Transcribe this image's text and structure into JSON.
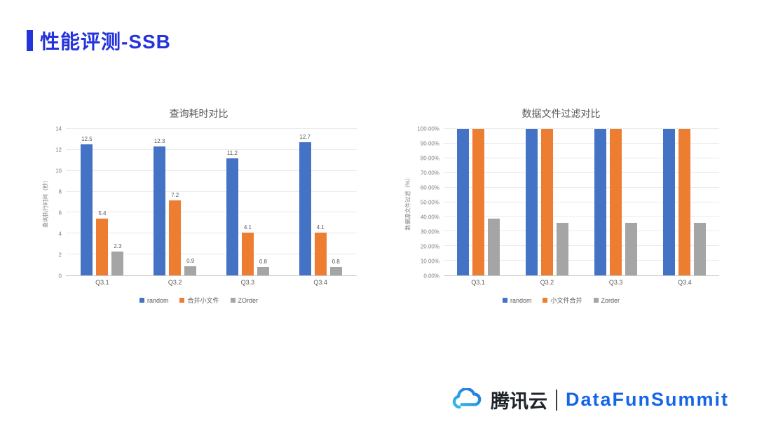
{
  "slide": {
    "title": "性能评测-SSB",
    "accent_color": "#2433DB"
  },
  "chart_data": [
    {
      "type": "bar",
      "title": "查询耗时对比",
      "ylabel": "查询执行时间（秒）",
      "xlabel": "",
      "ylim": [
        0,
        14
      ],
      "ytick_step": 2,
      "ytick_format": "number",
      "grid": true,
      "legend_position": "bottom",
      "data_labels": true,
      "categories": [
        "Q3.1",
        "Q3.2",
        "Q3.3",
        "Q3.4"
      ],
      "series": [
        {
          "name": "random",
          "color": "#4472C4",
          "values": [
            12.5,
            12.3,
            11.2,
            12.7
          ]
        },
        {
          "name": "合并小文件",
          "color": "#ED7D31",
          "values": [
            5.4,
            7.2,
            4.1,
            4.1
          ]
        },
        {
          "name": "ZOrder",
          "color": "#A5A5A5",
          "values": [
            2.3,
            0.9,
            0.8,
            0.8
          ]
        }
      ]
    },
    {
      "type": "bar",
      "title": "数据文件过滤对比",
      "ylabel": "数据源文件过滤（%）",
      "xlabel": "",
      "ylim": [
        0,
        100
      ],
      "ytick_step": 10,
      "ytick_format": "percent",
      "grid": true,
      "legend_position": "bottom",
      "data_labels": false,
      "categories": [
        "Q3.1",
        "Q3.2",
        "Q3.3",
        "Q3.4"
      ],
      "series": [
        {
          "name": "random",
          "color": "#4472C4",
          "values": [
            100,
            100,
            100,
            100
          ]
        },
        {
          "name": "小文件合并",
          "color": "#ED7D31",
          "values": [
            100,
            100,
            100,
            100
          ]
        },
        {
          "name": "Zorder",
          "color": "#A5A5A5",
          "values": [
            39,
            36,
            36,
            36
          ]
        }
      ]
    }
  ],
  "footer": {
    "tencent_brand": "腾讯云",
    "summit_brand": "DataFunSummit",
    "summit_color": "#1465E8",
    "cloud_icon": "tencent-cloud-icon"
  }
}
